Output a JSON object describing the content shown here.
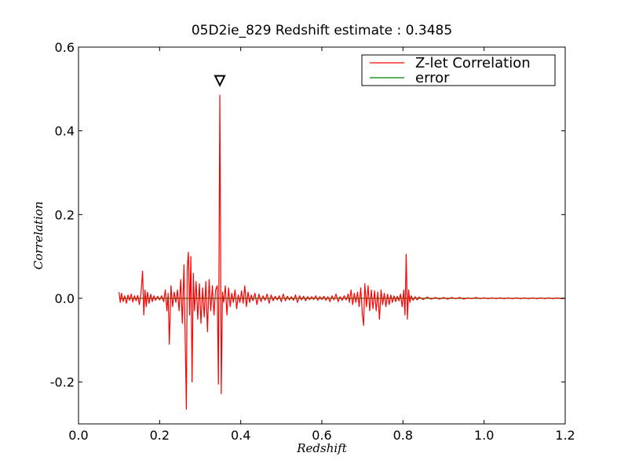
{
  "chart_data": {
    "type": "line",
    "title": "05D2ie_829 Redshift estimate : 0.3485",
    "xlabel": "Redshift",
    "ylabel": "Correlation",
    "xlim": [
      0.0,
      1.2
    ],
    "ylim": [
      -0.3,
      0.6
    ],
    "xticks": [
      0.0,
      0.2,
      0.4,
      0.6,
      0.8,
      1.0,
      1.2
    ],
    "xtick_labels": [
      "0.0",
      "0.2",
      "0.4",
      "0.6",
      "0.8",
      "1.0",
      "1.2"
    ],
    "yticks": [
      -0.2,
      0.0,
      0.2,
      0.4,
      0.6
    ],
    "ytick_labels": [
      "-0.2",
      "0.0",
      "0.2",
      "0.4",
      "0.6"
    ],
    "grid": false,
    "legend_position": "top-right",
    "series": [
      {
        "name": "Z-let Correlation",
        "color": "#ff0000",
        "points": [
          [
            0.1,
            0.015
          ],
          [
            0.103,
            -0.01
          ],
          [
            0.106,
            0.012
          ],
          [
            0.11,
            -0.008
          ],
          [
            0.114,
            0.006
          ],
          [
            0.118,
            -0.012
          ],
          [
            0.122,
            0.008
          ],
          [
            0.126,
            -0.005
          ],
          [
            0.13,
            0.01
          ],
          [
            0.134,
            -0.009
          ],
          [
            0.138,
            0.006
          ],
          [
            0.142,
            -0.006
          ],
          [
            0.146,
            0.007
          ],
          [
            0.15,
            -0.015
          ],
          [
            0.154,
            0.01
          ],
          [
            0.158,
            0.065
          ],
          [
            0.161,
            -0.04
          ],
          [
            0.164,
            0.02
          ],
          [
            0.167,
            -0.02
          ],
          [
            0.17,
            0.015
          ],
          [
            0.174,
            -0.012
          ],
          [
            0.178,
            0.01
          ],
          [
            0.182,
            -0.008
          ],
          [
            0.186,
            0.006
          ],
          [
            0.19,
            -0.005
          ],
          [
            0.195,
            0.005
          ],
          [
            0.2,
            -0.004
          ],
          [
            0.205,
            0.006
          ],
          [
            0.21,
            -0.008
          ],
          [
            0.214,
            0.02
          ],
          [
            0.218,
            -0.03
          ],
          [
            0.221,
            0.012
          ],
          [
            0.224,
            -0.11
          ],
          [
            0.228,
            0.03
          ],
          [
            0.232,
            -0.02
          ],
          [
            0.236,
            0.015
          ],
          [
            0.24,
            -0.01
          ],
          [
            0.244,
            0.02
          ],
          [
            0.248,
            -0.03
          ],
          [
            0.252,
            0.045
          ],
          [
            0.256,
            -0.06
          ],
          [
            0.26,
            0.08
          ],
          [
            0.264,
            -0.15
          ],
          [
            0.266,
            -0.265
          ],
          [
            0.268,
            0.07
          ],
          [
            0.271,
            0.11
          ],
          [
            0.274,
            -0.04
          ],
          [
            0.277,
            0.1
          ],
          [
            0.28,
            -0.2
          ],
          [
            0.283,
            0.06
          ],
          [
            0.286,
            -0.03
          ],
          [
            0.29,
            0.04
          ],
          [
            0.294,
            -0.05
          ],
          [
            0.298,
            0.035
          ],
          [
            0.302,
            -0.06
          ],
          [
            0.306,
            0.025
          ],
          [
            0.31,
            -0.045
          ],
          [
            0.314,
            0.04
          ],
          [
            0.318,
            -0.08
          ],
          [
            0.322,
            0.045
          ],
          [
            0.326,
            -0.03
          ],
          [
            0.33,
            0.03
          ],
          [
            0.334,
            -0.04
          ],
          [
            0.338,
            0.02
          ],
          [
            0.342,
            0.03
          ],
          [
            0.345,
            -0.205
          ],
          [
            0.3485,
            0.485
          ],
          [
            0.352,
            -0.228
          ],
          [
            0.355,
            0.015
          ],
          [
            0.358,
            -0.01
          ],
          [
            0.362,
            0.03
          ],
          [
            0.366,
            -0.04
          ],
          [
            0.37,
            0.025
          ],
          [
            0.374,
            -0.02
          ],
          [
            0.378,
            0.012
          ],
          [
            0.382,
            -0.01
          ],
          [
            0.386,
            0.02
          ],
          [
            0.39,
            -0.025
          ],
          [
            0.394,
            0.008
          ],
          [
            0.398,
            -0.01
          ],
          [
            0.402,
            0.018
          ],
          [
            0.406,
            -0.012
          ],
          [
            0.41,
            0.03
          ],
          [
            0.414,
            -0.02
          ],
          [
            0.418,
            0.015
          ],
          [
            0.422,
            -0.01
          ],
          [
            0.426,
            0.008
          ],
          [
            0.43,
            -0.006
          ],
          [
            0.435,
            0.012
          ],
          [
            0.44,
            -0.015
          ],
          [
            0.445,
            0.01
          ],
          [
            0.45,
            -0.008
          ],
          [
            0.455,
            0.006
          ],
          [
            0.46,
            -0.005
          ],
          [
            0.465,
            0.01
          ],
          [
            0.47,
            -0.012
          ],
          [
            0.475,
            0.008
          ],
          [
            0.48,
            -0.006
          ],
          [
            0.485,
            0.005
          ],
          [
            0.49,
            -0.004
          ],
          [
            0.495,
            0.006
          ],
          [
            0.5,
            -0.008
          ],
          [
            0.505,
            0.01
          ],
          [
            0.51,
            -0.006
          ],
          [
            0.515,
            0.005
          ],
          [
            0.52,
            -0.004
          ],
          [
            0.525,
            0.004
          ],
          [
            0.53,
            -0.005
          ],
          [
            0.535,
            0.008
          ],
          [
            0.54,
            -0.01
          ],
          [
            0.545,
            0.006
          ],
          [
            0.55,
            -0.004
          ],
          [
            0.555,
            0.005
          ],
          [
            0.56,
            -0.006
          ],
          [
            0.565,
            0.004
          ],
          [
            0.57,
            -0.003
          ],
          [
            0.575,
            0.004
          ],
          [
            0.58,
            -0.003
          ],
          [
            0.585,
            0.006
          ],
          [
            0.59,
            -0.005
          ],
          [
            0.595,
            0.004
          ],
          [
            0.6,
            -0.003
          ],
          [
            0.605,
            0.005
          ],
          [
            0.61,
            -0.005
          ],
          [
            0.615,
            0.004
          ],
          [
            0.62,
            -0.008
          ],
          [
            0.625,
            0.006
          ],
          [
            0.63,
            -0.004
          ],
          [
            0.635,
            0.01
          ],
          [
            0.64,
            -0.008
          ],
          [
            0.645,
            0.004
          ],
          [
            0.65,
            -0.005
          ],
          [
            0.655,
            0.006
          ],
          [
            0.66,
            -0.004
          ],
          [
            0.665,
            0.01
          ],
          [
            0.668,
            -0.01
          ],
          [
            0.672,
            0.02
          ],
          [
            0.676,
            -0.015
          ],
          [
            0.68,
            0.012
          ],
          [
            0.684,
            -0.01
          ],
          [
            0.688,
            0.015
          ],
          [
            0.692,
            -0.02
          ],
          [
            0.696,
            0.025
          ],
          [
            0.7,
            -0.04
          ],
          [
            0.703,
            -0.065
          ],
          [
            0.706,
            0.035
          ],
          [
            0.71,
            -0.02
          ],
          [
            0.714,
            0.03
          ],
          [
            0.718,
            -0.03
          ],
          [
            0.722,
            0.02
          ],
          [
            0.726,
            -0.025
          ],
          [
            0.73,
            0.018
          ],
          [
            0.734,
            -0.03
          ],
          [
            0.738,
            0.015
          ],
          [
            0.742,
            -0.05
          ],
          [
            0.746,
            0.02
          ],
          [
            0.75,
            -0.015
          ],
          [
            0.754,
            0.012
          ],
          [
            0.758,
            -0.02
          ],
          [
            0.762,
            0.01
          ],
          [
            0.766,
            -0.015
          ],
          [
            0.77,
            0.008
          ],
          [
            0.774,
            -0.01
          ],
          [
            0.778,
            0.006
          ],
          [
            0.782,
            -0.008
          ],
          [
            0.786,
            0.005
          ],
          [
            0.79,
            -0.006
          ],
          [
            0.794,
            0.01
          ],
          [
            0.798,
            -0.02
          ],
          [
            0.802,
            0.02
          ],
          [
            0.805,
            -0.04
          ],
          [
            0.808,
            0.105
          ],
          [
            0.811,
            -0.05
          ],
          [
            0.814,
            0.02
          ],
          [
            0.817,
            -0.01
          ],
          [
            0.82,
            0.006
          ],
          [
            0.825,
            -0.005
          ],
          [
            0.83,
            0.004
          ],
          [
            0.835,
            -0.004
          ],
          [
            0.84,
            0.003
          ],
          [
            0.85,
            -0.003
          ],
          [
            0.86,
            0.003
          ],
          [
            0.87,
            -0.002
          ],
          [
            0.88,
            0.002
          ],
          [
            0.89,
            -0.002
          ],
          [
            0.9,
            0.002
          ],
          [
            0.91,
            -0.002
          ],
          [
            0.92,
            0.002
          ],
          [
            0.93,
            -0.001
          ],
          [
            0.94,
            0.002
          ],
          [
            0.95,
            -0.002
          ],
          [
            0.96,
            0.001
          ],
          [
            0.97,
            -0.001
          ],
          [
            0.98,
            0.002
          ],
          [
            0.99,
            -0.001
          ],
          [
            1.0,
            0.001
          ],
          [
            1.01,
            -0.001
          ],
          [
            1.02,
            0.001
          ],
          [
            1.03,
            -0.001
          ],
          [
            1.04,
            0.001
          ],
          [
            1.05,
            -0.001
          ],
          [
            1.06,
            0.001
          ],
          [
            1.07,
            -0.001
          ],
          [
            1.08,
            0.001
          ],
          [
            1.09,
            -0.001
          ],
          [
            1.1,
            0.001
          ],
          [
            1.11,
            -0.001
          ],
          [
            1.12,
            0.001
          ],
          [
            1.13,
            -0.001
          ],
          [
            1.14,
            0.001
          ],
          [
            1.15,
            -0.001
          ],
          [
            1.16,
            0.001
          ],
          [
            1.17,
            -0.001
          ],
          [
            1.18,
            0.001
          ],
          [
            1.19,
            -0.001
          ],
          [
            1.2,
            0.0
          ]
        ]
      },
      {
        "name": "error",
        "color": "#008000",
        "points": [
          [
            0.1,
            0.0
          ],
          [
            1.2,
            0.0
          ]
        ]
      }
    ],
    "annotations": [
      {
        "type": "marker",
        "symbol": "inverted-triangle",
        "x": 0.3485,
        "y": 0.52
      }
    ]
  }
}
